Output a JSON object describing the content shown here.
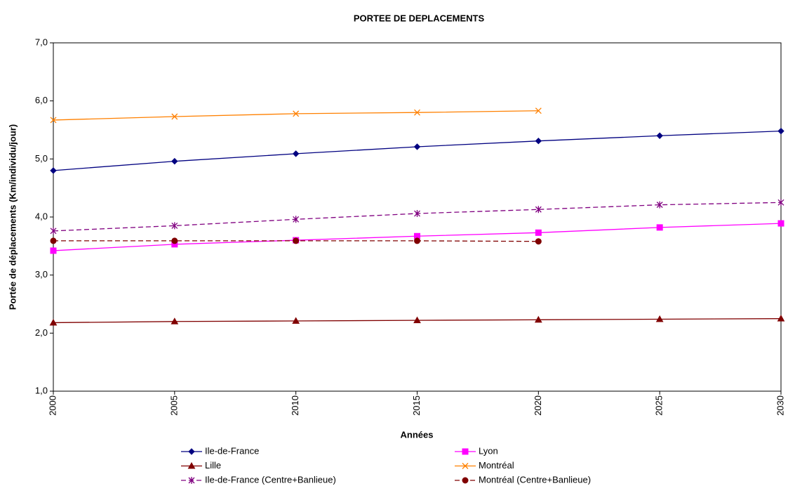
{
  "chart_data": {
    "type": "line",
    "title": "PORTEE DE DEPLACEMENTS",
    "x_label": "Années",
    "y_label": "Portée de déplacements (Km/individu/jour)",
    "x": [
      2000,
      2005,
      2010,
      2015,
      2020,
      2025,
      2030
    ],
    "xlim": [
      2000,
      2030
    ],
    "xticks": [
      2000,
      2005,
      2010,
      2015,
      2020,
      2025,
      2030
    ],
    "ylim": [
      1,
      7
    ],
    "yticks": [
      {
        "value": 1,
        "label": "1,0"
      },
      {
        "value": 2,
        "label": "2,0"
      },
      {
        "value": 3,
        "label": "3,0"
      },
      {
        "value": 4,
        "label": "4,0"
      },
      {
        "value": 5,
        "label": "5,0"
      },
      {
        "value": 6,
        "label": "6,0"
      },
      {
        "value": 7,
        "label": "7,0"
      }
    ],
    "grid": false,
    "legend": "bottom",
    "series": [
      {
        "name": "Ile-de-France",
        "color": "#000080",
        "marker": "diamond",
        "dashed": false,
        "values": [
          4.8,
          4.96,
          5.09,
          5.21,
          5.31,
          5.4,
          5.48
        ]
      },
      {
        "name": "Lyon",
        "color": "#ff00ff",
        "marker": "square",
        "dashed": false,
        "values": [
          3.42,
          3.53,
          3.6,
          3.67,
          3.73,
          3.82,
          3.89
        ]
      },
      {
        "name": "Lille",
        "color": "#800000",
        "marker": "triangle",
        "dashed": false,
        "values": [
          2.18,
          2.2,
          2.21,
          2.22,
          2.23,
          2.24,
          2.25
        ]
      },
      {
        "name": "Montréal",
        "color": "#ff8000",
        "marker": "x",
        "dashed": false,
        "values": [
          5.67,
          5.73,
          5.78,
          5.8,
          5.83,
          null,
          null
        ]
      },
      {
        "name": "Ile-de-France (Centre+Banlieue)",
        "color": "#800080",
        "marker": "star",
        "dashed": true,
        "values": [
          3.76,
          3.85,
          3.96,
          4.06,
          4.13,
          4.21,
          4.25
        ]
      },
      {
        "name": "Montréal (Centre+Banlieue)",
        "color": "#800000",
        "marker": "circle",
        "dashed": true,
        "values": [
          3.59,
          3.59,
          3.59,
          3.59,
          3.58,
          null,
          null
        ]
      }
    ]
  }
}
